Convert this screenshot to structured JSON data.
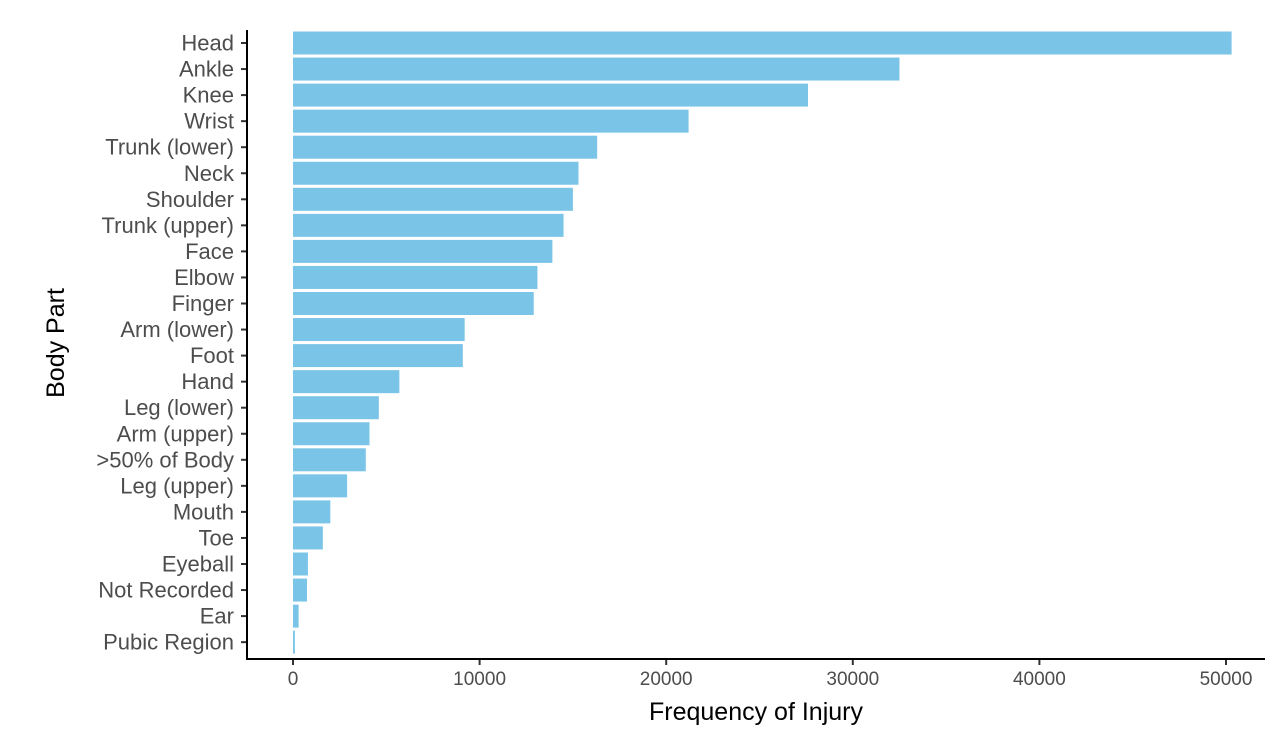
{
  "chart_data": {
    "type": "bar",
    "orientation": "horizontal",
    "xlabel": "Frequency of Injury",
    "ylabel": "Body Part",
    "xlim": [
      0,
      50000
    ],
    "x_ticks": [
      0,
      10000,
      20000,
      30000,
      40000,
      50000
    ],
    "grid": false,
    "bar_color": "#7AC4E8",
    "categories": [
      "Head",
      "Ankle",
      "Knee",
      "Wrist",
      "Trunk (lower)",
      "Neck",
      "Shoulder",
      "Trunk (upper)",
      "Face",
      "Elbow",
      "Finger",
      "Arm (lower)",
      "Foot",
      "Hand",
      "Leg (lower)",
      "Arm (upper)",
      ">50% of Body",
      "Leg (upper)",
      "Mouth",
      "Toe",
      "Eyeball",
      "Not Recorded",
      "Ear",
      "Pubic Region"
    ],
    "values": [
      50300,
      32500,
      27600,
      21200,
      16300,
      15300,
      15000,
      14500,
      13900,
      13100,
      12900,
      9200,
      9100,
      5700,
      4600,
      4100,
      3900,
      2900,
      2000,
      1600,
      800,
      750,
      300,
      100
    ]
  }
}
